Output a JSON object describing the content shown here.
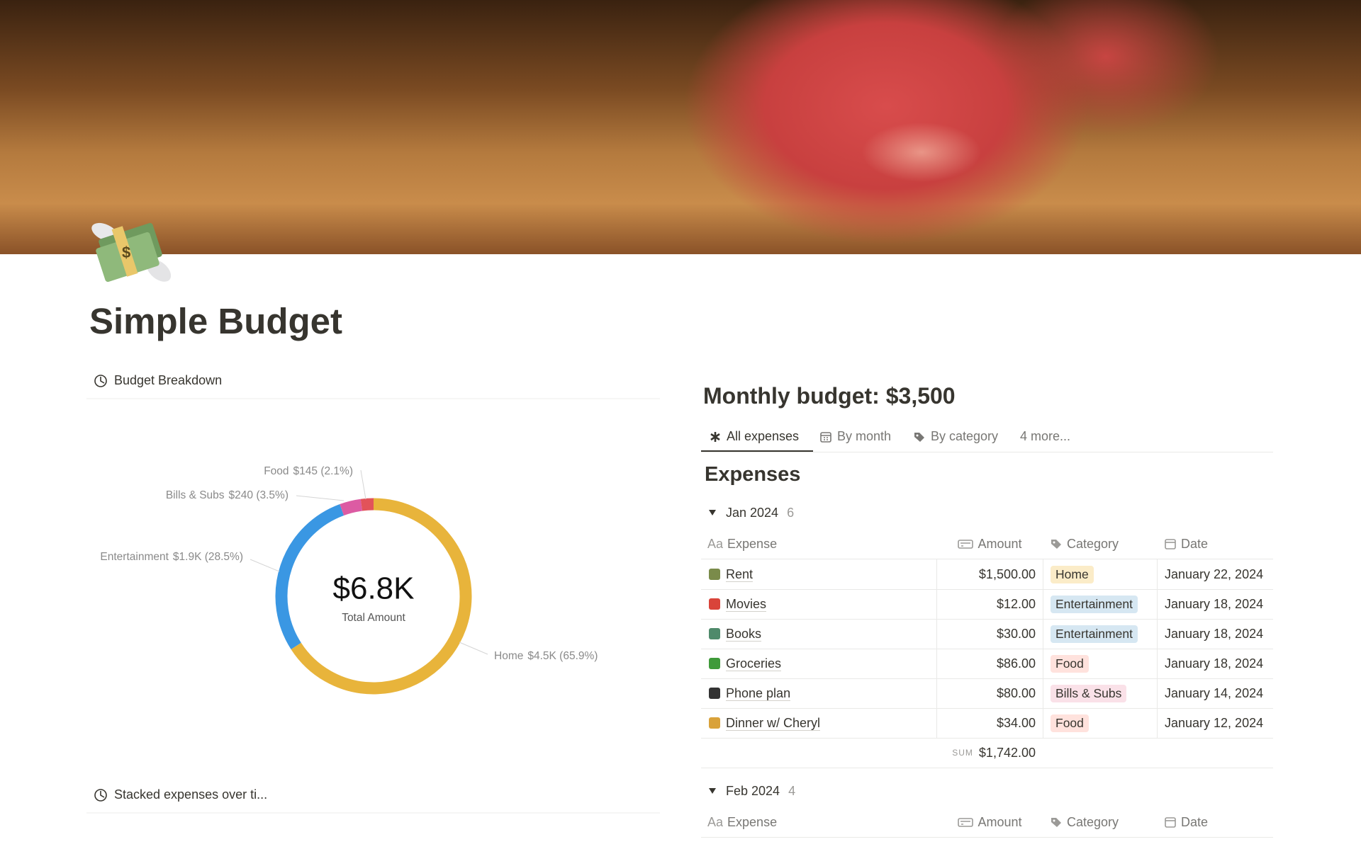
{
  "page": {
    "title": "Simple Budget"
  },
  "chart_data": {
    "type": "pie",
    "title": "Budget Breakdown",
    "center_value": "$6.8K",
    "center_label": "Total Amount",
    "categories": [
      "Home",
      "Entertainment",
      "Bills & Subs",
      "Food"
    ],
    "values": [
      65.9,
      28.5,
      3.5,
      2.1
    ],
    "value_labels": [
      "$4.5K (65.9%)",
      "$1.9K (28.5%)",
      "$240 (3.5%)",
      "$145 (2.1%)"
    ],
    "colors": [
      "#e8b43b",
      "#3a97e3",
      "#dc5ba3",
      "#e2535a"
    ],
    "tag_colors": [
      "#fbecc8",
      "#d6e7f2",
      "#fae1e8",
      "#ffe2dd"
    ]
  },
  "second_chart": {
    "title": "Stacked expenses over ti..."
  },
  "database": {
    "title": "Monthly budget: $3,500",
    "tabs": [
      "All expenses",
      "By month",
      "By category",
      "4 more..."
    ],
    "view_title": "Expenses",
    "columns": [
      {
        "icon": "Aa",
        "name": "Expense"
      },
      {
        "name": "Amount"
      },
      {
        "name": "Category"
      },
      {
        "name": "Date"
      }
    ],
    "groups": [
      {
        "name": "Jan 2024",
        "count": 6,
        "rows": [
          [
            "Rent",
            "$1,500.00",
            "Home",
            "January 22, 2024"
          ],
          [
            "Movies",
            "$12.00",
            "Entertainment",
            "January 18, 2024"
          ],
          [
            "Books",
            "$30.00",
            "Entertainment",
            "January 18, 2024"
          ],
          [
            "Groceries",
            "$86.00",
            "Food",
            "January 18, 2024"
          ],
          [
            "Phone plan",
            "$80.00",
            "Bills & Subs",
            "January 14, 2024"
          ],
          [
            "Dinner w/ Cheryl",
            "$34.00",
            "Food",
            "January 12, 2024"
          ]
        ],
        "sum_label": "SUM",
        "sum": "$1,742.00"
      },
      {
        "name": "Feb 2024",
        "count": 4
      }
    ]
  }
}
